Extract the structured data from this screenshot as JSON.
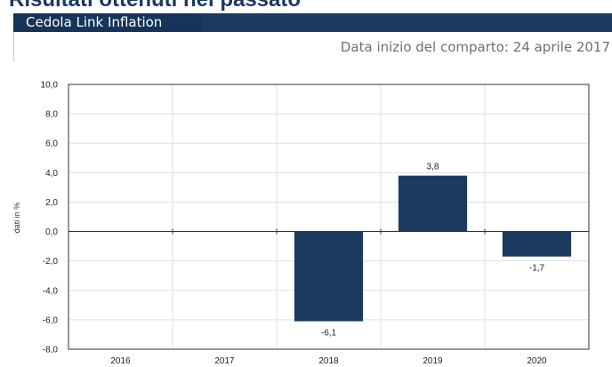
{
  "heading": "Risultati ottenuti nel passato",
  "panel": {
    "tab_label": "Cedola Link Inflation",
    "start_date": "Data inizio del comparto: 24 aprile 2017"
  },
  "colors": {
    "bar": "#1b3a5e",
    "header": "#1b3a5e",
    "grid": "#e1e1e1",
    "axis": "#333333"
  },
  "chart_data": {
    "type": "bar",
    "categories": [
      "2016",
      "2017",
      "2018",
      "2019",
      "2020"
    ],
    "values": [
      null,
      null,
      -6.1,
      3.8,
      -1.7
    ],
    "data_labels": [
      "",
      "",
      "-6,1",
      "3,8",
      "-1,7"
    ],
    "title": "",
    "xlabel": "",
    "ylabel": "dati in %",
    "ylim": [
      -8,
      10
    ],
    "yticks": [
      "-8,0",
      "-6,0",
      "-4,0",
      "-2,0",
      "0,0",
      "2,0",
      "4,0",
      "6,0",
      "8,0",
      "10,0"
    ],
    "grid": true,
    "legend": "none"
  }
}
